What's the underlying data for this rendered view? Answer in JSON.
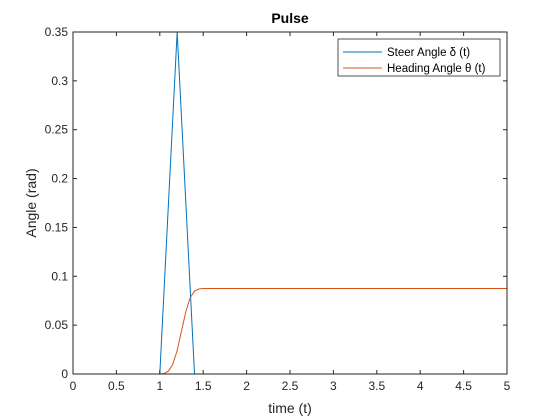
{
  "chart_data": {
    "type": "line",
    "title": "Pulse",
    "xlabel": "time (t)",
    "ylabel": "Angle (rad)",
    "xlim": [
      0,
      5
    ],
    "ylim": [
      0,
      0.35
    ],
    "xticks": [
      0,
      0.5,
      1,
      1.5,
      2,
      2.5,
      3,
      3.5,
      4,
      4.5,
      5
    ],
    "xtick_labels": [
      "0",
      "0.5",
      "1",
      "1.5",
      "2",
      "2.5",
      "3",
      "3.5",
      "4",
      "4.5",
      "5"
    ],
    "yticks": [
      0,
      0.05,
      0.1,
      0.15,
      0.2,
      0.25,
      0.3,
      0.35
    ],
    "ytick_labels": [
      "0",
      "0.05",
      "0.1",
      "0.15",
      "0.2",
      "0.25",
      "0.3",
      "0.35"
    ],
    "grid": false,
    "legend_position": "top-right",
    "series": [
      {
        "name": "Steer Angle δ (t)",
        "color": "#0072BD",
        "x": [
          0,
          1,
          1.2,
          1.4,
          5
        ],
        "y": [
          0,
          0,
          0.35,
          0,
          0
        ]
      },
      {
        "name": "Heading Angle θ (t)",
        "color": "#D95319",
        "x": [
          0,
          1.0,
          1.05,
          1.1,
          1.15,
          1.2,
          1.25,
          1.3,
          1.35,
          1.4,
          1.45,
          1.5,
          2.0,
          3.0,
          4.0,
          5.0
        ],
        "y": [
          0,
          0,
          0.0005,
          0.003,
          0.01,
          0.024,
          0.044,
          0.064,
          0.078,
          0.085,
          0.087,
          0.0875,
          0.0875,
          0.0875,
          0.0875,
          0.0875
        ]
      }
    ]
  }
}
